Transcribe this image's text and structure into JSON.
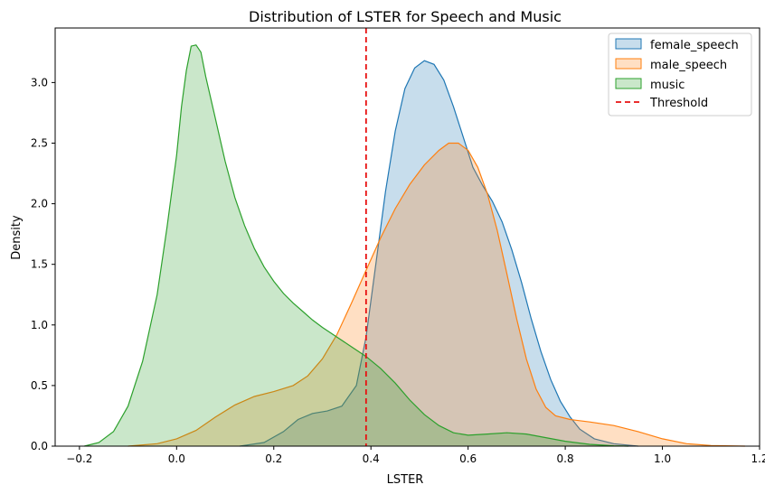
{
  "chart_data": {
    "type": "area",
    "title": "Distribution of LSTER for Speech and Music",
    "xlabel": "LSTER",
    "ylabel": "Density",
    "xlim": [
      -0.25,
      1.2
    ],
    "ylim": [
      0,
      3.45
    ],
    "x_ticks": [
      -0.2,
      0.0,
      0.2,
      0.4,
      0.6,
      0.8,
      1.0,
      1.2
    ],
    "x_tick_labels": [
      "−0.2",
      "0.0",
      "0.2",
      "0.4",
      "0.6",
      "0.8",
      "1.0",
      "1.2"
    ],
    "y_ticks": [
      0.0,
      0.5,
      1.0,
      1.5,
      2.0,
      2.5,
      3.0
    ],
    "y_tick_labels": [
      "0.0",
      "0.5",
      "1.0",
      "1.5",
      "2.0",
      "2.5",
      "3.0"
    ],
    "grid": false,
    "legend_position": "top-right",
    "threshold": {
      "name": "Threshold",
      "x": 0.39,
      "color": "#e81010",
      "style": "dashed"
    },
    "series": [
      {
        "name": "female_speech",
        "color": "#1f77b4",
        "points": [
          [
            0.13,
            0.0
          ],
          [
            0.18,
            0.03
          ],
          [
            0.22,
            0.12
          ],
          [
            0.25,
            0.22
          ],
          [
            0.28,
            0.27
          ],
          [
            0.31,
            0.29
          ],
          [
            0.34,
            0.33
          ],
          [
            0.37,
            0.5
          ],
          [
            0.39,
            0.9
          ],
          [
            0.41,
            1.5
          ],
          [
            0.43,
            2.1
          ],
          [
            0.45,
            2.6
          ],
          [
            0.47,
            2.95
          ],
          [
            0.49,
            3.12
          ],
          [
            0.51,
            3.18
          ],
          [
            0.53,
            3.15
          ],
          [
            0.55,
            3.02
          ],
          [
            0.57,
            2.8
          ],
          [
            0.59,
            2.55
          ],
          [
            0.61,
            2.3
          ],
          [
            0.63,
            2.15
          ],
          [
            0.65,
            2.02
          ],
          [
            0.67,
            1.85
          ],
          [
            0.69,
            1.62
          ],
          [
            0.71,
            1.35
          ],
          [
            0.73,
            1.05
          ],
          [
            0.75,
            0.78
          ],
          [
            0.77,
            0.55
          ],
          [
            0.79,
            0.37
          ],
          [
            0.81,
            0.24
          ],
          [
            0.83,
            0.14
          ],
          [
            0.86,
            0.06
          ],
          [
            0.9,
            0.02
          ],
          [
            0.95,
            0.0
          ]
        ]
      },
      {
        "name": "male_speech",
        "color": "#ff7f0e",
        "points": [
          [
            -0.1,
            0.0
          ],
          [
            -0.04,
            0.02
          ],
          [
            0.0,
            0.06
          ],
          [
            0.04,
            0.13
          ],
          [
            0.08,
            0.24
          ],
          [
            0.12,
            0.34
          ],
          [
            0.16,
            0.41
          ],
          [
            0.2,
            0.45
          ],
          [
            0.24,
            0.5
          ],
          [
            0.27,
            0.58
          ],
          [
            0.3,
            0.72
          ],
          [
            0.33,
            0.92
          ],
          [
            0.36,
            1.18
          ],
          [
            0.39,
            1.45
          ],
          [
            0.42,
            1.72
          ],
          [
            0.45,
            1.96
          ],
          [
            0.48,
            2.16
          ],
          [
            0.51,
            2.32
          ],
          [
            0.54,
            2.44
          ],
          [
            0.56,
            2.5
          ],
          [
            0.58,
            2.5
          ],
          [
            0.6,
            2.44
          ],
          [
            0.62,
            2.3
          ],
          [
            0.64,
            2.08
          ],
          [
            0.66,
            1.78
          ],
          [
            0.68,
            1.42
          ],
          [
            0.7,
            1.05
          ],
          [
            0.72,
            0.72
          ],
          [
            0.74,
            0.47
          ],
          [
            0.76,
            0.32
          ],
          [
            0.78,
            0.25
          ],
          [
            0.81,
            0.22
          ],
          [
            0.85,
            0.2
          ],
          [
            0.9,
            0.17
          ],
          [
            0.95,
            0.12
          ],
          [
            1.0,
            0.06
          ],
          [
            1.05,
            0.02
          ],
          [
            1.1,
            0.005
          ],
          [
            1.17,
            0.0
          ]
        ]
      },
      {
        "name": "music",
        "color": "#2ca02c",
        "points": [
          [
            -0.19,
            0.0
          ],
          [
            -0.16,
            0.03
          ],
          [
            -0.13,
            0.12
          ],
          [
            -0.1,
            0.33
          ],
          [
            -0.07,
            0.7
          ],
          [
            -0.04,
            1.25
          ],
          [
            -0.02,
            1.8
          ],
          [
            0.0,
            2.4
          ],
          [
            0.01,
            2.8
          ],
          [
            0.02,
            3.1
          ],
          [
            0.03,
            3.3
          ],
          [
            0.04,
            3.31
          ],
          [
            0.05,
            3.25
          ],
          [
            0.06,
            3.05
          ],
          [
            0.08,
            2.7
          ],
          [
            0.1,
            2.35
          ],
          [
            0.12,
            2.05
          ],
          [
            0.14,
            1.82
          ],
          [
            0.16,
            1.63
          ],
          [
            0.18,
            1.48
          ],
          [
            0.2,
            1.36
          ],
          [
            0.22,
            1.26
          ],
          [
            0.24,
            1.18
          ],
          [
            0.26,
            1.11
          ],
          [
            0.28,
            1.04
          ],
          [
            0.3,
            0.98
          ],
          [
            0.33,
            0.9
          ],
          [
            0.36,
            0.82
          ],
          [
            0.39,
            0.74
          ],
          [
            0.42,
            0.64
          ],
          [
            0.45,
            0.52
          ],
          [
            0.48,
            0.38
          ],
          [
            0.51,
            0.26
          ],
          [
            0.54,
            0.17
          ],
          [
            0.57,
            0.11
          ],
          [
            0.6,
            0.09
          ],
          [
            0.64,
            0.1
          ],
          [
            0.68,
            0.11
          ],
          [
            0.72,
            0.1
          ],
          [
            0.76,
            0.07
          ],
          [
            0.8,
            0.04
          ],
          [
            0.85,
            0.015
          ],
          [
            0.9,
            0.003
          ],
          [
            0.93,
            0.0
          ]
        ]
      }
    ]
  }
}
